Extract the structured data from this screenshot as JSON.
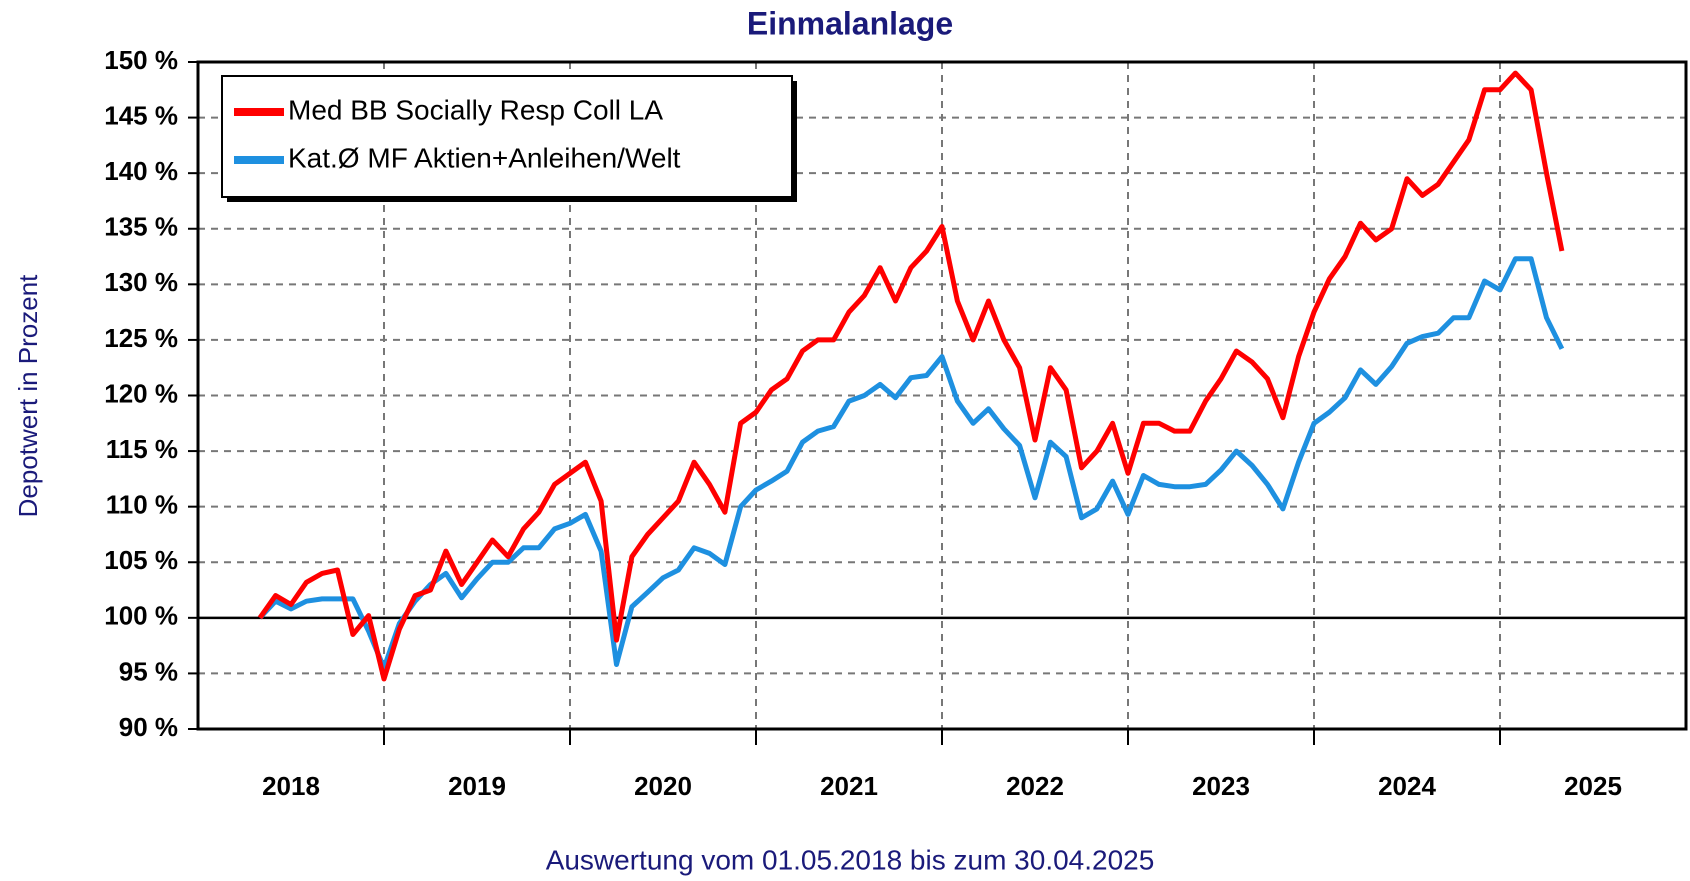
{
  "chart_data": {
    "type": "line",
    "title": "Einmalanlage",
    "y_label": "Depotwert in Prozent",
    "x_label": "Auswertung vom 01.05.2018 bis zum 30.04.2025",
    "xlim": [
      2018,
      2026
    ],
    "xticks": [
      {
        "value": 2018.5,
        "label": "2018"
      },
      {
        "value": 2019.5,
        "label": "2019"
      },
      {
        "value": 2020.5,
        "label": "2020"
      },
      {
        "value": 2021.5,
        "label": "2021"
      },
      {
        "value": 2022.5,
        "label": "2022"
      },
      {
        "value": 2023.5,
        "label": "2023"
      },
      {
        "value": 2024.5,
        "label": "2024"
      },
      {
        "value": 2025.5,
        "label": "2025"
      }
    ],
    "xgrid": [
      2019,
      2020,
      2021,
      2022,
      2023,
      2024,
      2025
    ],
    "ylim": [
      90,
      150
    ],
    "yticks": [
      {
        "value": 90,
        "label": "90 %"
      },
      {
        "value": 95,
        "label": "95 %"
      },
      {
        "value": 100,
        "label": "100 %"
      },
      {
        "value": 105,
        "label": "105 %"
      },
      {
        "value": 110,
        "label": "110 %"
      },
      {
        "value": 115,
        "label": "115 %"
      },
      {
        "value": 120,
        "label": "120 %"
      },
      {
        "value": 125,
        "label": "125 %"
      },
      {
        "value": 130,
        "label": "130 %"
      },
      {
        "value": 135,
        "label": "135 %"
      },
      {
        "value": 140,
        "label": "140 %"
      },
      {
        "value": 145,
        "label": "145 %"
      },
      {
        "value": 150,
        "label": "150 %"
      }
    ],
    "baseline": 100,
    "grid": true,
    "legend": "upper left",
    "x": [
      2018.333,
      2018.417,
      2018.5,
      2018.583,
      2018.667,
      2018.75,
      2018.833,
      2018.917,
      2019.0,
      2019.083,
      2019.167,
      2019.25,
      2019.333,
      2019.417,
      2019.5,
      2019.583,
      2019.667,
      2019.75,
      2019.833,
      2019.917,
      2020.0,
      2020.083,
      2020.167,
      2020.25,
      2020.333,
      2020.417,
      2020.5,
      2020.583,
      2020.667,
      2020.75,
      2020.833,
      2020.917,
      2021.0,
      2021.083,
      2021.167,
      2021.25,
      2021.333,
      2021.417,
      2021.5,
      2021.583,
      2021.667,
      2021.75,
      2021.833,
      2021.917,
      2022.0,
      2022.083,
      2022.167,
      2022.25,
      2022.333,
      2022.417,
      2022.5,
      2022.583,
      2022.667,
      2022.75,
      2022.833,
      2022.917,
      2023.0,
      2023.083,
      2023.167,
      2023.25,
      2023.333,
      2023.417,
      2023.5,
      2023.583,
      2023.667,
      2023.75,
      2023.833,
      2023.917,
      2024.0,
      2024.083,
      2024.167,
      2024.25,
      2024.333,
      2024.417,
      2024.5,
      2024.583,
      2024.667,
      2024.75,
      2024.833,
      2024.917,
      2025.0,
      2025.083,
      2025.167,
      2025.25,
      2025.333
    ],
    "series": [
      {
        "name": "Med BB Socially Resp Coll LA",
        "color": "#ff0000",
        "values": [
          100,
          102,
          101.2,
          103.2,
          104,
          104.3,
          98.5,
          100.2,
          94.5,
          99,
          102,
          102.5,
          106,
          103,
          105,
          107,
          105.5,
          108,
          109.5,
          112,
          113,
          114,
          110.5,
          98,
          105.5,
          107.5,
          109,
          110.5,
          114,
          112,
          109.5,
          117.5,
          118.5,
          120.5,
          121.5,
          124,
          125,
          125,
          127.5,
          129,
          131.5,
          128.5,
          131.5,
          133,
          135.2,
          128.5,
          125,
          128.5,
          125,
          122.5,
          116,
          122.5,
          120.5,
          113.5,
          115,
          117.5,
          113,
          117.5,
          117.5,
          116.8,
          116.8,
          119.5,
          121.5,
          124,
          123,
          121.5,
          118,
          123.5,
          127.5,
          130.5,
          132.5,
          135.5,
          134,
          135,
          139.5,
          138,
          139,
          141,
          143,
          147.5,
          147.5,
          149,
          147.5,
          140,
          133
        ]
      },
      {
        "name": "Kat.Ø MF Aktien+Anleihen/Welt",
        "color": "#1e90e0",
        "values": [
          100,
          101.5,
          100.8,
          101.5,
          101.7,
          101.7,
          101.7,
          98.8,
          95.5,
          99.5,
          101.5,
          103,
          104,
          101.8,
          103.5,
          105,
          105,
          106.3,
          106.3,
          108,
          108.5,
          109.3,
          106,
          95.8,
          101,
          102.3,
          103.6,
          104.3,
          106.3,
          105.8,
          104.8,
          110,
          111.5,
          112.3,
          113.2,
          115.8,
          116.8,
          117.2,
          119.5,
          120,
          121,
          119.8,
          121.6,
          121.8,
          123.5,
          119.5,
          117.5,
          118.8,
          117,
          115.5,
          110.8,
          115.8,
          114.5,
          109,
          109.8,
          112.3,
          109.3,
          112.8,
          112,
          111.8,
          111.8,
          112,
          113.3,
          115,
          113.7,
          112,
          109.8,
          114,
          117.5,
          118.5,
          119.8,
          122.3,
          121,
          122.6,
          124.7,
          125.3,
          125.6,
          127,
          127,
          130.3,
          129.5,
          132.3,
          132.3,
          127,
          124.2
        ]
      }
    ]
  }
}
